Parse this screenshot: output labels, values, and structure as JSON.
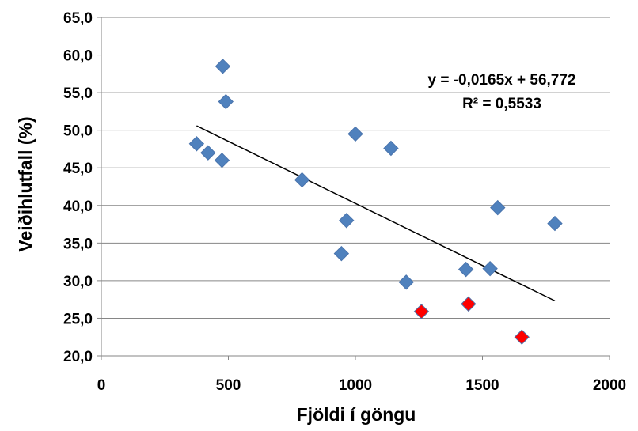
{
  "chart_data": {
    "type": "scatter",
    "title": "",
    "xlabel": "Fjöldi í göngu",
    "ylabel": "Veiðihlutfall (%)",
    "xlim": [
      0,
      2000
    ],
    "ylim": [
      20,
      65
    ],
    "x_ticks": [
      0,
      500,
      1000,
      1500,
      2000
    ],
    "x_tick_labels": [
      "0",
      "500",
      "1000",
      "1500",
      "2000"
    ],
    "y_ticks": [
      20,
      25,
      30,
      35,
      40,
      45,
      50,
      55,
      60,
      65
    ],
    "y_tick_labels": [
      "20,0",
      "25,0",
      "30,0",
      "35,0",
      "40,0",
      "45,0",
      "50,0",
      "55,0",
      "60,0",
      "65,0"
    ],
    "grid": "horizontal",
    "series": [
      {
        "color": "#4f81bd",
        "marker": "diamond",
        "points": [
          {
            "x": 478,
            "y": 58.5
          },
          {
            "x": 490,
            "y": 53.8
          },
          {
            "x": 375,
            "y": 48.2
          },
          {
            "x": 420,
            "y": 47.0
          },
          {
            "x": 475,
            "y": 46.0
          },
          {
            "x": 790,
            "y": 43.4
          },
          {
            "x": 1000,
            "y": 49.5
          },
          {
            "x": 1140,
            "y": 47.6
          },
          {
            "x": 965,
            "y": 38.0
          },
          {
            "x": 945,
            "y": 33.6
          },
          {
            "x": 1200,
            "y": 29.8
          },
          {
            "x": 1435,
            "y": 31.5
          },
          {
            "x": 1530,
            "y": 31.6
          },
          {
            "x": 1560,
            "y": 39.7
          },
          {
            "x": 1785,
            "y": 37.6
          }
        ]
      },
      {
        "color": "#ff0000",
        "marker": "diamond",
        "points": [
          {
            "x": 1260,
            "y": 25.9
          },
          {
            "x": 1445,
            "y": 26.9
          },
          {
            "x": 1655,
            "y": 22.5
          }
        ]
      }
    ],
    "trendline": {
      "slope": -0.0165,
      "intercept": 56.772,
      "x_start": 375,
      "x_end": 1785,
      "color": "#000000"
    },
    "annotations": {
      "equation": "y = -0,0165x + 56,772",
      "r_squared": "R² = 0,5533"
    }
  }
}
